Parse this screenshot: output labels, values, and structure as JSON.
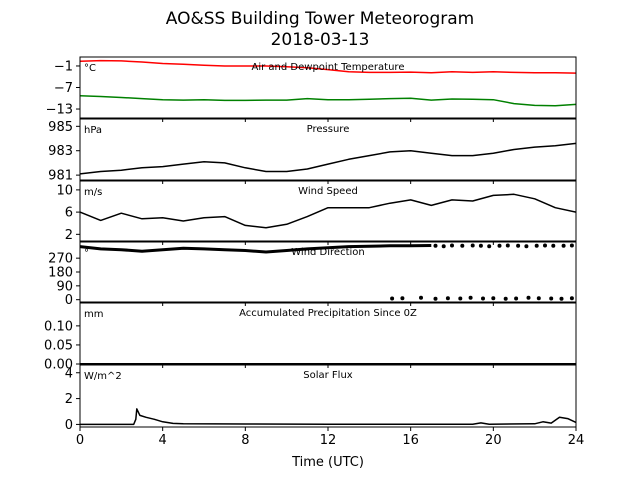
{
  "chart_data": {
    "type": "line",
    "title": "AO&SS Building Tower Meteorogram",
    "subtitle": "2018-03-13",
    "xlabel": "Time (UTC)",
    "xlim": [
      0,
      24
    ],
    "xticks": [
      0,
      4,
      8,
      12,
      16,
      20,
      24
    ],
    "panels": [
      {
        "id": "temp",
        "label": "Air and Dewpoint Temperature",
        "unit": "°C",
        "ylim": [
          -15.5,
          1.5
        ],
        "yticks": [
          -1,
          -7,
          -13
        ],
        "series": [
          {
            "color": "#ff0000",
            "width": 1.5,
            "style": "line",
            "x": [
              0,
              1,
              2,
              3,
              4,
              5,
              6,
              7,
              8,
              9,
              10,
              11,
              12,
              13,
              14,
              15,
              16,
              17,
              18,
              19,
              20,
              21,
              22,
              23,
              24
            ],
            "y": [
              0.3,
              0.5,
              0.4,
              0.1,
              -0.3,
              -0.5,
              -0.8,
              -1.0,
              -1.0,
              -1.0,
              -1.2,
              -1.5,
              -2.0,
              -2.6,
              -2.8,
              -2.8,
              -2.7,
              -2.9,
              -2.6,
              -2.8,
              -2.6,
              -2.8,
              -2.9,
              -2.9,
              -3.0
            ]
          },
          {
            "color": "#008000",
            "width": 1.5,
            "style": "line",
            "x": [
              0,
              1,
              2,
              3,
              4,
              5,
              6,
              7,
              8,
              9,
              10,
              11,
              12,
              13,
              14,
              15,
              16,
              17,
              18,
              19,
              20,
              21,
              22,
              23,
              24
            ],
            "y": [
              -9.3,
              -9.5,
              -9.8,
              -10.1,
              -10.4,
              -10.5,
              -10.4,
              -10.6,
              -10.6,
              -10.5,
              -10.5,
              -10.1,
              -10.4,
              -10.4,
              -10.3,
              -10.1,
              -10.0,
              -10.5,
              -10.2,
              -10.3,
              -10.4,
              -11.5,
              -12.0,
              -12.1,
              -11.7
            ]
          }
        ]
      },
      {
        "id": "pres",
        "label": "Pressure",
        "unit": "hPa",
        "ylim": [
          980.6,
          985.6
        ],
        "yticks": [
          985,
          983,
          981
        ],
        "series": [
          {
            "color": "#000000",
            "width": 1.5,
            "style": "line",
            "x": [
              0,
              1,
              2,
              3,
              4,
              5,
              6,
              7,
              8,
              9,
              10,
              11,
              12,
              13,
              14,
              15,
              16,
              17,
              18,
              19,
              20,
              21,
              22,
              23,
              24
            ],
            "y": [
              981.1,
              981.3,
              981.4,
              981.6,
              981.7,
              981.9,
              982.1,
              982.0,
              981.6,
              981.3,
              981.3,
              981.5,
              981.9,
              982.3,
              982.6,
              982.9,
              983.0,
              982.8,
              982.6,
              982.6,
              982.8,
              983.1,
              983.3,
              983.4,
              983.6
            ]
          }
        ]
      },
      {
        "id": "wspd",
        "label": "Wind Speed",
        "unit": "m/s",
        "ylim": [
          0.8,
          11.6
        ],
        "yticks": [
          10,
          6,
          2
        ],
        "series": [
          {
            "color": "#000000",
            "width": 1.5,
            "style": "line",
            "x": [
              0,
              1,
              2,
              3,
              4,
              5,
              6,
              7,
              8,
              9,
              10,
              11,
              12,
              13,
              14,
              15,
              16,
              17,
              18,
              19,
              20,
              21,
              22,
              23,
              24
            ],
            "y": [
              6.0,
              4.5,
              5.8,
              4.8,
              5.0,
              4.4,
              5.0,
              5.2,
              3.6,
              3.2,
              3.8,
              5.2,
              6.8,
              6.8,
              6.8,
              7.6,
              8.2,
              7.2,
              8.2,
              8.0,
              9.0,
              9.2,
              8.4,
              6.8,
              6.0
            ]
          }
        ]
      },
      {
        "id": "wdir",
        "label": "Wind Direction",
        "unit": "°",
        "ylim": [
          -15,
          375
        ],
        "yticks": [
          270,
          180,
          90,
          0
        ],
        "series": [
          {
            "color": "#000000",
            "width": 3,
            "style": "line",
            "x": [
              0,
              1,
              2,
              3,
              4,
              5,
              6,
              7,
              8,
              9,
              10,
              11,
              12,
              13,
              14,
              15,
              16,
              17
            ],
            "y": [
              345,
              330,
              325,
              315,
              325,
              335,
              330,
              325,
              320,
              310,
              320,
              330,
              338,
              345,
              348,
              350,
              350,
              352
            ]
          },
          {
            "color": "#000000",
            "width": 0,
            "style": "points",
            "x": [
              17.2,
              17.6,
              18.0,
              18.5,
              19.0,
              19.4,
              19.8,
              20.3,
              20.7,
              21.2,
              21.6,
              22.1,
              22.5,
              22.9,
              23.4,
              23.8
            ],
            "y": [
              350,
              348,
              352,
              350,
              352,
              351,
              348,
              350,
              352,
              350,
              348,
              350,
              352,
              351,
              350,
              352
            ]
          },
          {
            "color": "#000000",
            "width": 0,
            "style": "points",
            "x": [
              15.1,
              15.6,
              16.5,
              17.2,
              17.8,
              18.4,
              18.9,
              19.5,
              20.0,
              20.6,
              21.1,
              21.7,
              22.2,
              22.8,
              23.3,
              23.8
            ],
            "y": [
              8,
              10,
              12,
              6,
              10,
              8,
              12,
              8,
              10,
              6,
              8,
              12,
              10,
              8,
              6,
              10
            ]
          }
        ]
      },
      {
        "id": "prcp",
        "label": "Accumulated Precipitation Since 0Z",
        "unit": "mm",
        "ylim": [
          0,
          0.16
        ],
        "yticks": [
          0.1,
          0.05,
          0.0
        ],
        "ytick_labels": [
          "0.10",
          "0.05",
          "0.00"
        ],
        "series": [
          {
            "color": "#000000",
            "width": 2,
            "style": "line",
            "x": [
              0,
              24
            ],
            "y": [
              0,
              0
            ]
          }
        ]
      },
      {
        "id": "solar",
        "label": "Solar Flux",
        "unit": "W/m^2",
        "ylim": [
          -0.2,
          4.6
        ],
        "yticks": [
          4,
          2,
          0
        ],
        "series": [
          {
            "color": "#000000",
            "width": 1.5,
            "style": "line",
            "x": [
              0,
              2.6,
              2.7,
              2.75,
              2.9,
              3.2,
              3.6,
              4.0,
              4.5,
              5.0,
              8.0,
              12.0,
              16.0,
              19.0,
              19.4,
              19.8,
              22.0,
              22.4,
              22.8,
              23.2,
              23.6,
              24.0
            ],
            "y": [
              0,
              0,
              0.4,
              1.2,
              0.7,
              0.55,
              0.4,
              0.2,
              0.08,
              0.05,
              0.03,
              0.02,
              0.02,
              0.02,
              0.12,
              0.02,
              0.05,
              0.2,
              0.1,
              0.55,
              0.45,
              0.15
            ]
          }
        ]
      }
    ]
  }
}
